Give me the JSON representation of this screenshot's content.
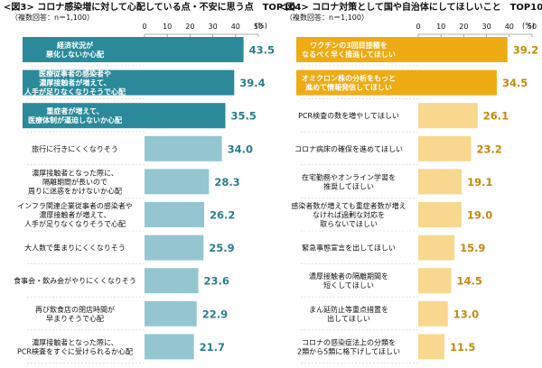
{
  "chart_data": [
    {
      "type": "bar",
      "orientation": "horizontal",
      "title": "<図3> コロナ感染増に対して心配している点・不安に思う点　TOP10",
      "subtitle": "（複数回答：n＝1,100）",
      "unit": "(%)",
      "xlim": [
        0,
        50
      ],
      "ticks": [
        "0",
        "10",
        "20",
        "30",
        "40",
        "50"
      ],
      "tick_values": [
        0,
        10,
        20,
        30,
        40,
        50
      ],
      "grid": false,
      "colors": {
        "highlight": "#2a8a9a",
        "normal": "#94c6d2",
        "value_text": "#2a7f8f"
      },
      "categories": [
        [
          "経済状況が",
          "悪化しないか心配"
        ],
        [
          "医療従事者の感染者や",
          "濃厚接触者が増えて、",
          "人手が足りなくなりそうで心配"
        ],
        [
          "重症者が増えて、",
          "医療体制が逼迫しないか心配"
        ],
        [
          "旅行に行きにくくなりそう"
        ],
        [
          "濃厚接触者となった際に、",
          "隔離期間が長いので",
          "周りに迷惑をかけないか心配"
        ],
        [
          "インフラ関連企業従事者の感染者や",
          "濃厚接触者が増えて、",
          "人手が足りなくなりそうで心配"
        ],
        [
          "大人数で集まりにくくなりそう"
        ],
        [
          "食事会・飲み会がやりにくくなりそう"
        ],
        [
          "再び飲食店の閉店時間が",
          "早まりそうで心配"
        ],
        [
          "濃厚接触者となった際に、",
          "PCR検査をすぐに受けられるか心配"
        ]
      ],
      "values": [
        43.5,
        39.4,
        35.5,
        34.0,
        28.3,
        26.2,
        25.9,
        23.6,
        22.9,
        21.7
      ],
      "value_labels": [
        "43.5",
        "39.4",
        "35.5",
        "34.0",
        "28.3",
        "26.2",
        "25.9",
        "23.6",
        "22.9",
        "21.7"
      ],
      "highlighted": [
        true,
        true,
        true,
        false,
        false,
        false,
        false,
        false,
        false,
        false
      ]
    },
    {
      "type": "bar",
      "orientation": "horizontal",
      "title": "<図4> コロナ対策として国や自治体にしてほしいこと　TOP10",
      "subtitle": "（複数回答：n＝1,100）",
      "unit": "(%)",
      "xlim": [
        0,
        50
      ],
      "ticks": [
        "0",
        "10",
        "20",
        "30",
        "40",
        "50"
      ],
      "tick_values": [
        0,
        10,
        20,
        30,
        40,
        50
      ],
      "grid": false,
      "colors": {
        "highlight": "#eeab14",
        "normal": "#f8d88f",
        "value_text": "#c68a0c"
      },
      "categories": [
        [
          "ワクチンの3回目接種を",
          "なるべく早く推進してほしい"
        ],
        [
          "オミクロン株の分析をもっと",
          "進めて情報発信してほしい"
        ],
        [
          "PCR検査の数を増やしてほしい"
        ],
        [
          "コロナ病床の確保を進めてほしい"
        ],
        [
          "在宅勤務やオンライン学習を",
          "推奨してほしい"
        ],
        [
          "感染者数が増えても重症者数が増え",
          "なければ過剰な対応を",
          "取らないでほしい"
        ],
        [
          "緊急事態宣言を出してほしい"
        ],
        [
          "濃厚接触者の隔離期間を",
          "短くしてほしい"
        ],
        [
          "まん延防止等重点措置を",
          "出してほしい"
        ],
        [
          "コロナの感染症法上の分類を",
          "2類から5類に格下げしてほしい"
        ]
      ],
      "values": [
        39.2,
        34.5,
        26.1,
        23.2,
        19.1,
        19.0,
        15.9,
        14.5,
        13.0,
        11.5
      ],
      "value_labels": [
        "39.2",
        "34.5",
        "26.1",
        "23.2",
        "19.1",
        "19.0",
        "15.9",
        "14.5",
        "13.0",
        "11.5"
      ],
      "highlighted": [
        true,
        true,
        false,
        false,
        false,
        false,
        false,
        false,
        false,
        false
      ]
    }
  ]
}
